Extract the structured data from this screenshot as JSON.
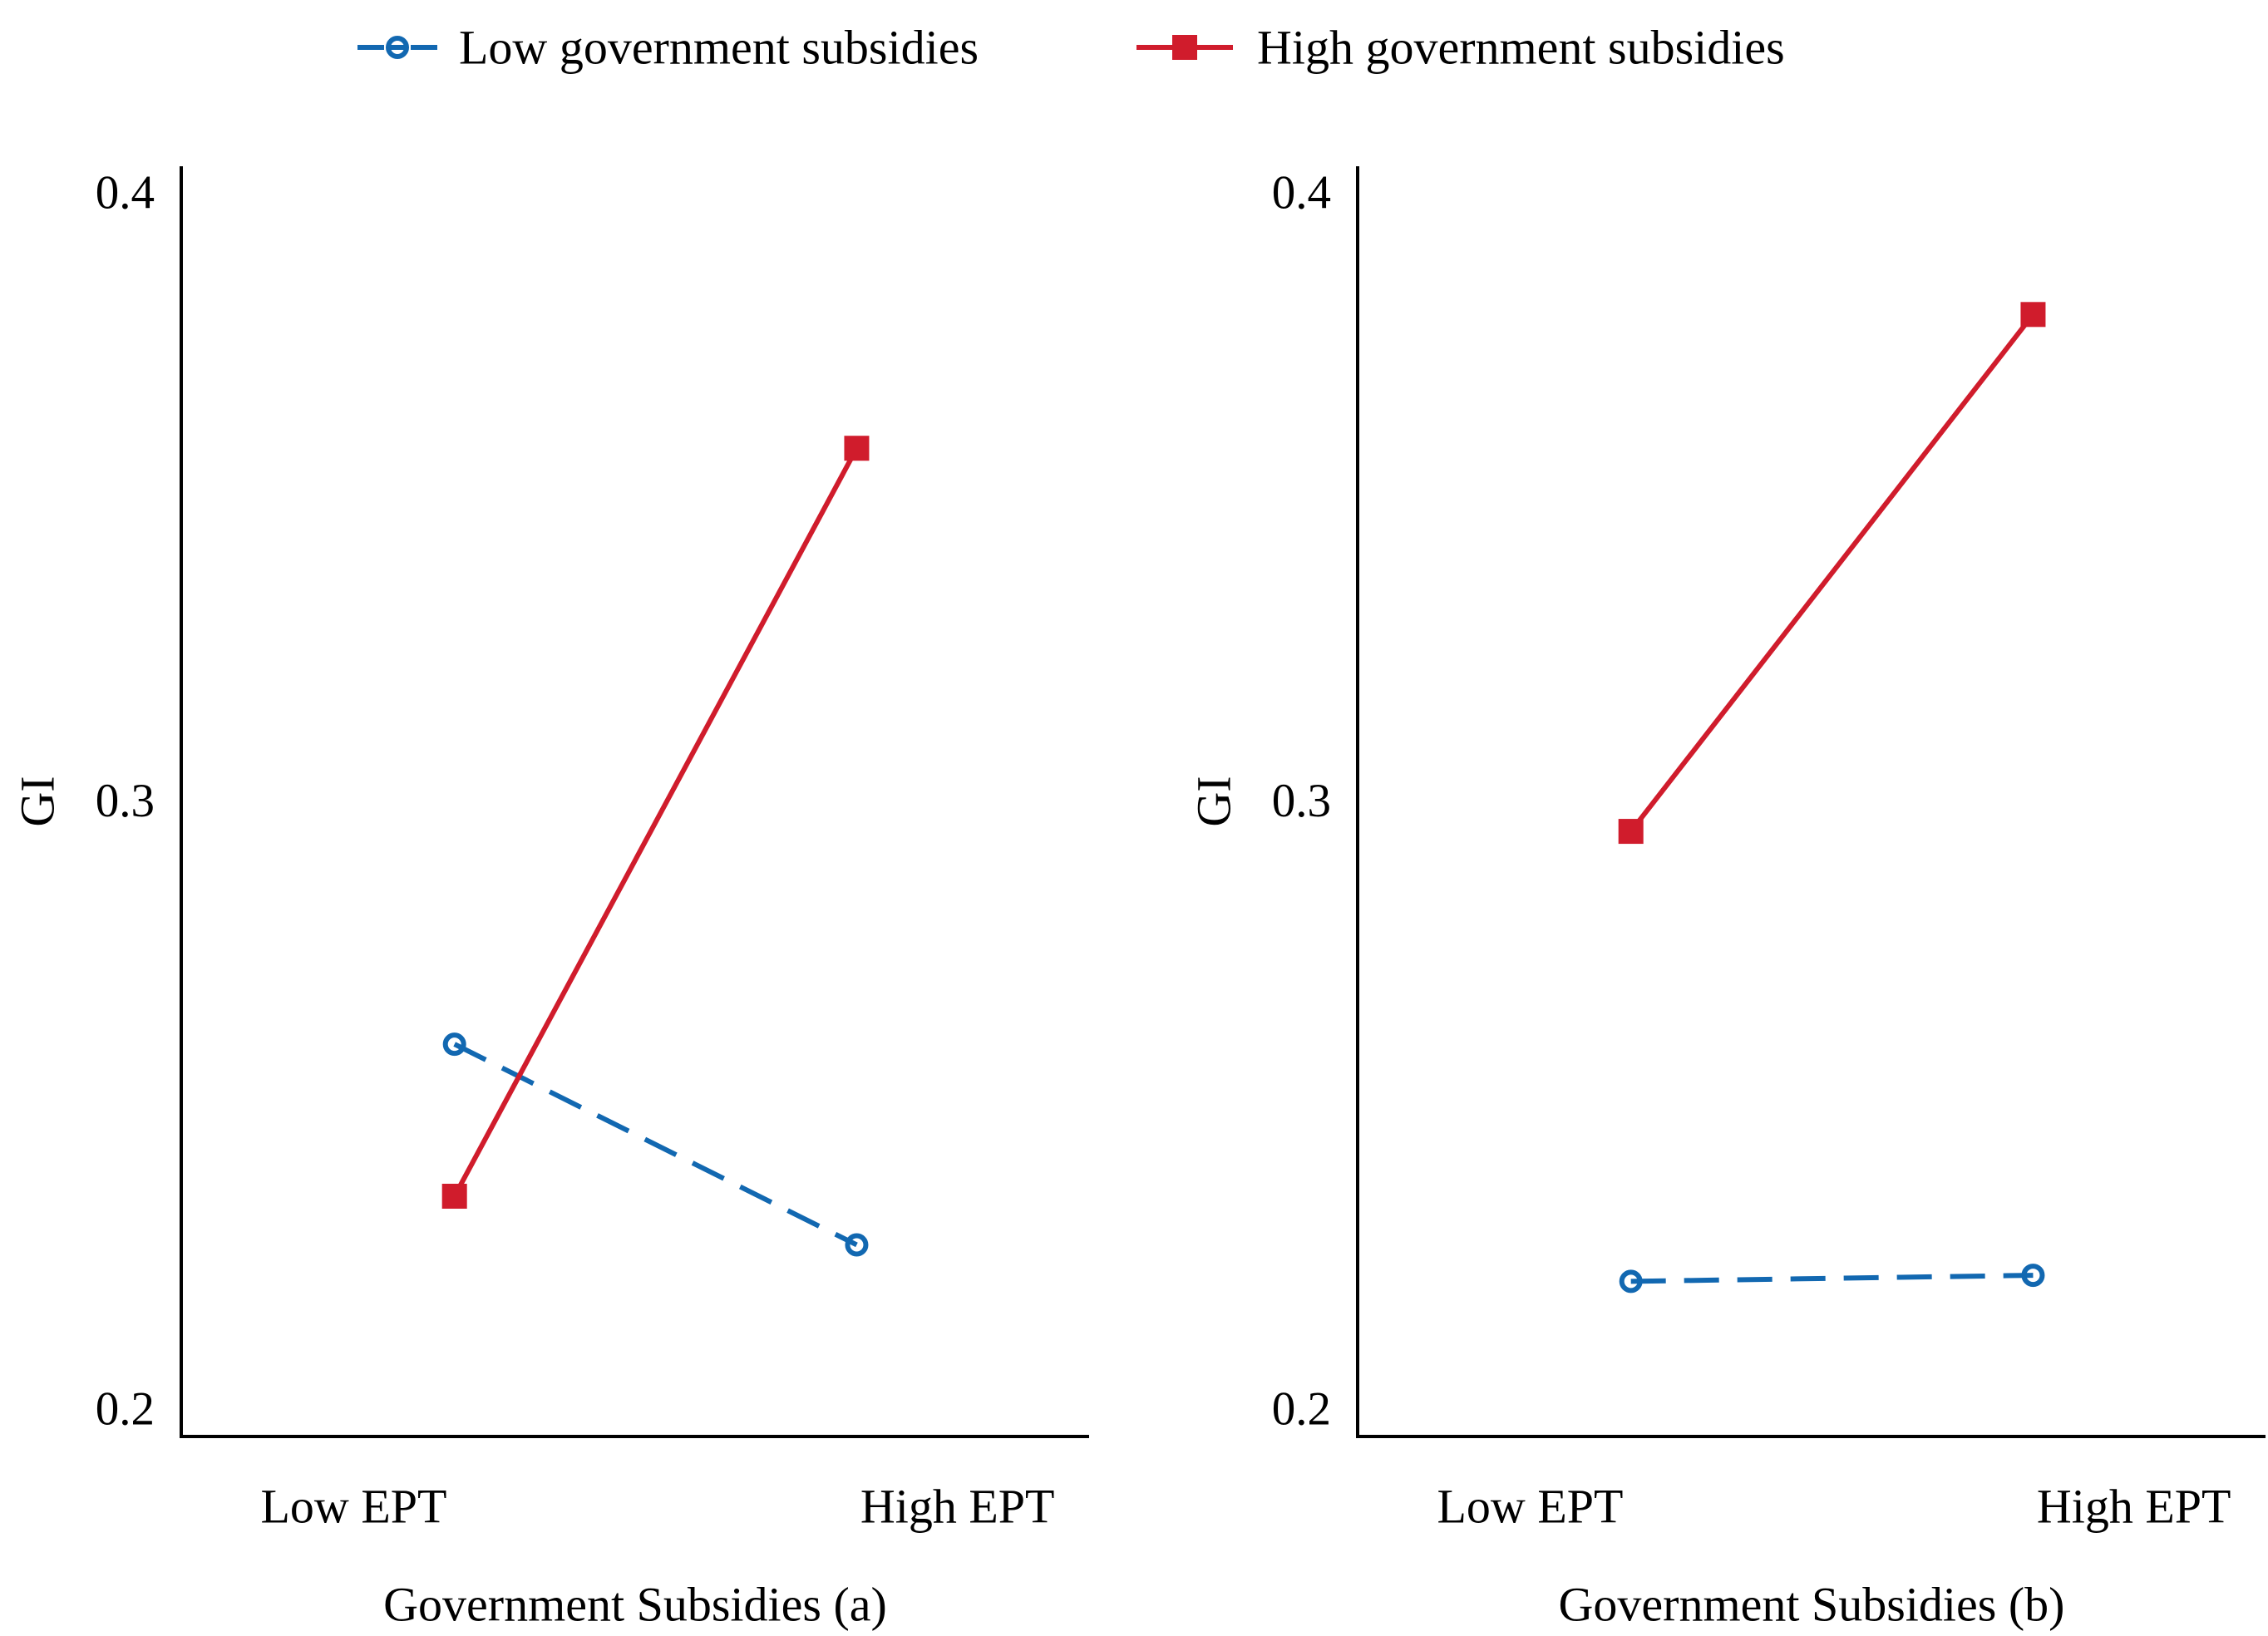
{
  "figure": {
    "background": "#ffffff",
    "text_color": "#000000"
  },
  "legend": {
    "position": "top",
    "items": [
      {
        "label": "Low government subsidies",
        "marker": "open-circle-dashed-line",
        "color": "#1268b1"
      },
      {
        "label": "High government subsidies",
        "marker": "filled-square-solid-line",
        "color": "#d01c2c"
      }
    ]
  },
  "chart_data": {
    "type": "line",
    "layout": "two-panel-interaction-plot",
    "categories": [
      "Low EPT",
      "High EPT"
    ],
    "ylabel": "GI",
    "yticks": [
      0.2,
      0.3,
      0.4
    ],
    "ytick_labels": [
      "0.2",
      "0.3",
      "0.4"
    ],
    "ylim": [
      0.195,
      0.405
    ],
    "grid": false,
    "legend_position": "top",
    "panels": [
      {
        "xlabel": "Government Subsidies (a)",
        "series": [
          {
            "name": "Low government subsidies",
            "color": "#1268b1",
            "marker": "circle-open",
            "line_style": "dashed",
            "values": [
              0.26,
              0.227
            ]
          },
          {
            "name": "High government subsidies",
            "color": "#d01c2c",
            "marker": "square-filled",
            "line_style": "solid",
            "values": [
              0.235,
              0.358
            ]
          }
        ]
      },
      {
        "xlabel": "Government Subsidies (b)",
        "series": [
          {
            "name": "Low government subsidies",
            "color": "#1268b1",
            "marker": "circle-open",
            "line_style": "dashed",
            "values": [
              0.221,
              0.222
            ]
          },
          {
            "name": "High government subsidies",
            "color": "#d01c2c",
            "marker": "square-filled",
            "line_style": "solid",
            "values": [
              0.295,
              0.38
            ]
          }
        ]
      }
    ]
  }
}
